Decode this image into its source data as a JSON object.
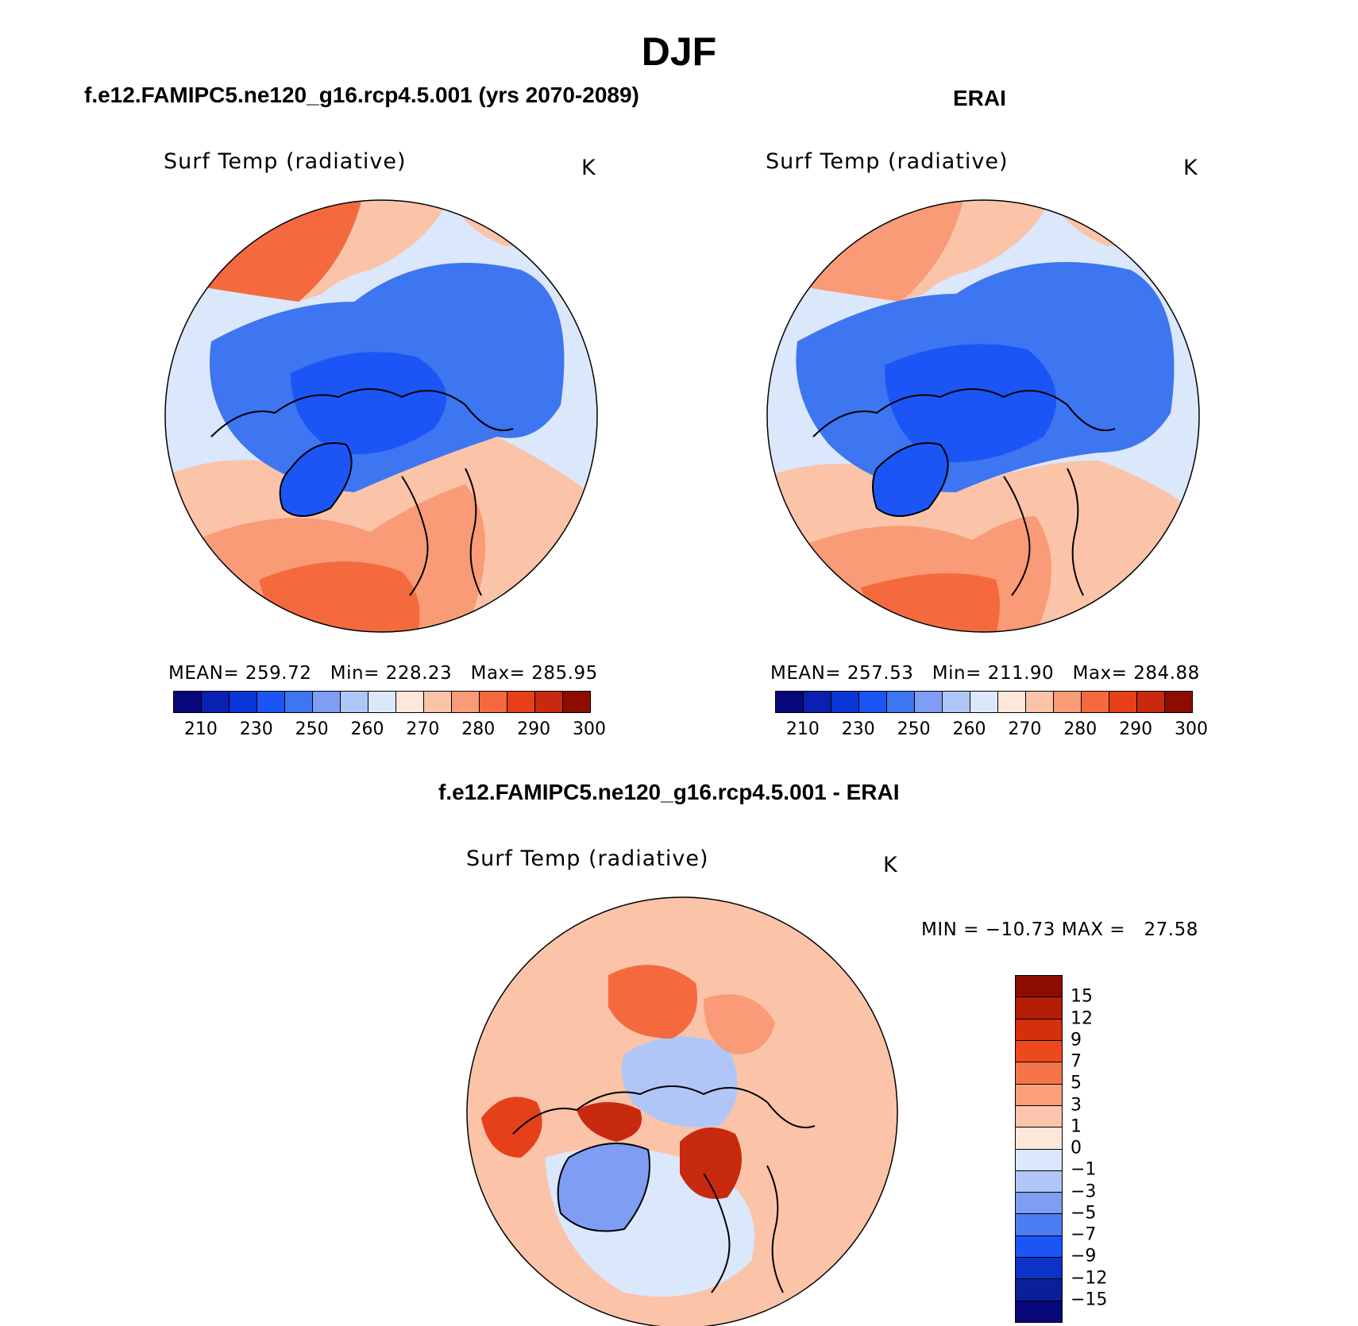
{
  "page": {
    "title": "DJF"
  },
  "panels": [
    {
      "id": "model",
      "title": "f.e12.FAMIPC5.ne120_g16.rcp4.5.001 (yrs 2070-2089)",
      "variable": "Surf Temp (radiative)",
      "units": "K",
      "stats": "MEAN= 259.72   Min= 228.23   Max= 285.95"
    },
    {
      "id": "obs",
      "title": "ERAI",
      "variable": "Surf Temp (radiative)",
      "units": "K",
      "stats": "MEAN= 257.53   Min= 211.90   Max= 284.88"
    },
    {
      "id": "diff",
      "title": "f.e12.FAMIPC5.ne120_g16.rcp4.5.001 - ERAI",
      "variable": "Surf Temp (radiative)",
      "units": "K",
      "stats": "MIN = −10.73 MAX =   27.58"
    }
  ],
  "colorbar_abs": {
    "ticks": [
      "210",
      "230",
      "250",
      "260",
      "270",
      "280",
      "290",
      "300"
    ],
    "colors": [
      "#08087a",
      "#0b1fb0",
      "#0a36d8",
      "#1c55f5",
      "#3e75f0",
      "#7e9df3",
      "#b0c6f6",
      "#dbe7fb",
      "#fde7d9",
      "#fbc3a8",
      "#f99b76",
      "#f46a3e",
      "#e5401a",
      "#c82a10",
      "#8e0b00"
    ]
  },
  "colorbar_diff": {
    "ticks": [
      "15",
      "12",
      "9",
      "7",
      "5",
      "3",
      "1",
      "0",
      "−1",
      "−3",
      "−5",
      "−7",
      "−9",
      "−12",
      "−15"
    ],
    "colors": [
      "#8e0b00",
      "#b31d05",
      "#d4300c",
      "#ec4a1d",
      "#f67449",
      "#fa9f7a",
      "#fcc5ad",
      "#fde7d9",
      "#dbe7fb",
      "#b0c6f6",
      "#7e9df3",
      "#4a7ef2",
      "#1c55f5",
      "#0b33c8",
      "#0a1f9a",
      "#08087a"
    ]
  },
  "maps": {
    "model": {
      "background": "#b6cbf6",
      "field_icon": "arctic-surface-temperature-field"
    },
    "obs": {
      "background": "#b6cbf6",
      "field_icon": "arctic-surface-temperature-field"
    },
    "diff": {
      "background": "#fbc3a8",
      "field_icon": "arctic-temperature-difference-field"
    }
  }
}
